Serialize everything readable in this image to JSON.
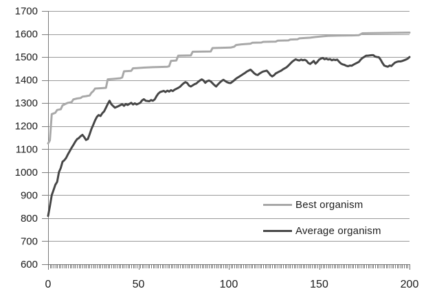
{
  "chart_data": {
    "type": "line",
    "title": "",
    "xlabel": "",
    "ylabel": "",
    "xlim": [
      0,
      200
    ],
    "ylim": [
      600,
      1700
    ],
    "yticks": [
      600,
      700,
      800,
      900,
      1000,
      1100,
      1200,
      1300,
      1400,
      1500,
      1600,
      1700
    ],
    "xticks": [
      0,
      50,
      100,
      150,
      200
    ],
    "x_minor_tick_interval": 1,
    "grid": "horizontal",
    "legend_position": "inside-right",
    "series": [
      {
        "name": "Best organism",
        "color": "#a8a8a8",
        "stroke_width": 3,
        "points": [
          [
            0,
            1125
          ],
          [
            1,
            1138
          ],
          [
            2,
            1252
          ],
          [
            4,
            1258
          ],
          [
            5,
            1270
          ],
          [
            7,
            1273
          ],
          [
            8,
            1290
          ],
          [
            10,
            1298
          ],
          [
            11,
            1301
          ],
          [
            13,
            1304
          ],
          [
            14,
            1316
          ],
          [
            16,
            1320
          ],
          [
            18,
            1322
          ],
          [
            19,
            1328
          ],
          [
            21,
            1330
          ],
          [
            23,
            1333
          ],
          [
            24,
            1345
          ],
          [
            25,
            1352
          ],
          [
            26,
            1363
          ],
          [
            30,
            1365
          ],
          [
            32,
            1366
          ],
          [
            33,
            1403
          ],
          [
            36,
            1405
          ],
          [
            40,
            1408
          ],
          [
            41,
            1411
          ],
          [
            42,
            1438
          ],
          [
            46,
            1440
          ],
          [
            47,
            1451
          ],
          [
            49,
            1452
          ],
          [
            53,
            1454
          ],
          [
            58,
            1456
          ],
          [
            63,
            1457
          ],
          [
            66,
            1458
          ],
          [
            67,
            1460
          ],
          [
            68,
            1483
          ],
          [
            71,
            1485
          ],
          [
            72,
            1506
          ],
          [
            79,
            1507
          ],
          [
            80,
            1523
          ],
          [
            90,
            1524
          ],
          [
            91,
            1539
          ],
          [
            101,
            1541
          ],
          [
            103,
            1545
          ],
          [
            104,
            1552
          ],
          [
            107,
            1555
          ],
          [
            112,
            1558
          ],
          [
            113,
            1562
          ],
          [
            118,
            1563
          ],
          [
            119,
            1566
          ],
          [
            126,
            1567
          ],
          [
            127,
            1571
          ],
          [
            133,
            1572
          ],
          [
            134,
            1576
          ],
          [
            138,
            1577
          ],
          [
            139,
            1581
          ],
          [
            145,
            1584
          ],
          [
            148,
            1587
          ],
          [
            152,
            1590
          ],
          [
            155,
            1592
          ],
          [
            160,
            1593
          ],
          [
            168,
            1594
          ],
          [
            172,
            1595
          ],
          [
            174,
            1603
          ],
          [
            180,
            1604
          ],
          [
            190,
            1605
          ],
          [
            200,
            1606
          ]
        ]
      },
      {
        "name": "Average organism",
        "color": "#464646",
        "stroke_width": 3,
        "points": [
          [
            0,
            810
          ],
          [
            1,
            852
          ],
          [
            2,
            900
          ],
          [
            3,
            922
          ],
          [
            4,
            945
          ],
          [
            5,
            958
          ],
          [
            6,
            1000
          ],
          [
            7,
            1018
          ],
          [
            8,
            1045
          ],
          [
            9,
            1052
          ],
          [
            10,
            1062
          ],
          [
            11,
            1078
          ],
          [
            12,
            1092
          ],
          [
            13,
            1106
          ],
          [
            14,
            1118
          ],
          [
            15,
            1132
          ],
          [
            16,
            1143
          ],
          [
            17,
            1148
          ],
          [
            18,
            1156
          ],
          [
            19,
            1162
          ],
          [
            20,
            1152
          ],
          [
            21,
            1140
          ],
          [
            22,
            1144
          ],
          [
            23,
            1165
          ],
          [
            24,
            1188
          ],
          [
            25,
            1206
          ],
          [
            26,
            1225
          ],
          [
            27,
            1240
          ],
          [
            28,
            1248
          ],
          [
            29,
            1244
          ],
          [
            30,
            1256
          ],
          [
            31,
            1264
          ],
          [
            32,
            1280
          ],
          [
            33,
            1296
          ],
          [
            34,
            1310
          ],
          [
            35,
            1295
          ],
          [
            36,
            1287
          ],
          [
            37,
            1280
          ],
          [
            39,
            1287
          ],
          [
            41,
            1295
          ],
          [
            42,
            1288
          ],
          [
            43,
            1296
          ],
          [
            44,
            1292
          ],
          [
            46,
            1301
          ],
          [
            47,
            1294
          ],
          [
            48,
            1299
          ],
          [
            49,
            1294
          ],
          [
            51,
            1301
          ],
          [
            52,
            1312
          ],
          [
            53,
            1317
          ],
          [
            54,
            1310
          ],
          [
            56,
            1308
          ],
          [
            57,
            1313
          ],
          [
            58,
            1310
          ],
          [
            59,
            1316
          ],
          [
            60,
            1330
          ],
          [
            61,
            1341
          ],
          [
            62,
            1348
          ],
          [
            64,
            1353
          ],
          [
            65,
            1348
          ],
          [
            66,
            1354
          ],
          [
            67,
            1350
          ],
          [
            68,
            1356
          ],
          [
            69,
            1352
          ],
          [
            70,
            1358
          ],
          [
            72,
            1366
          ],
          [
            73,
            1371
          ],
          [
            74,
            1379
          ],
          [
            75,
            1386
          ],
          [
            76,
            1391
          ],
          [
            77,
            1387
          ],
          [
            78,
            1376
          ],
          [
            79,
            1372
          ],
          [
            80,
            1377
          ],
          [
            81,
            1382
          ],
          [
            82,
            1385
          ],
          [
            83,
            1392
          ],
          [
            84,
            1398
          ],
          [
            85,
            1403
          ],
          [
            86,
            1398
          ],
          [
            87,
            1388
          ],
          [
            88,
            1395
          ],
          [
            89,
            1398
          ],
          [
            90,
            1394
          ],
          [
            91,
            1386
          ],
          [
            92,
            1378
          ],
          [
            93,
            1372
          ],
          [
            94,
            1381
          ],
          [
            95,
            1389
          ],
          [
            96,
            1396
          ],
          [
            97,
            1401
          ],
          [
            98,
            1396
          ],
          [
            99,
            1391
          ],
          [
            100,
            1388
          ],
          [
            101,
            1387
          ],
          [
            102,
            1393
          ],
          [
            103,
            1399
          ],
          [
            104,
            1406
          ],
          [
            105,
            1411
          ],
          [
            106,
            1416
          ],
          [
            107,
            1421
          ],
          [
            108,
            1426
          ],
          [
            109,
            1431
          ],
          [
            110,
            1437
          ],
          [
            111,
            1441
          ],
          [
            112,
            1445
          ],
          [
            113,
            1438
          ],
          [
            114,
            1430
          ],
          [
            115,
            1424
          ],
          [
            116,
            1422
          ],
          [
            117,
            1428
          ],
          [
            118,
            1433
          ],
          [
            119,
            1437
          ],
          [
            120,
            1439
          ],
          [
            121,
            1441
          ],
          [
            122,
            1432
          ],
          [
            123,
            1422
          ],
          [
            124,
            1416
          ],
          [
            125,
            1421
          ],
          [
            126,
            1429
          ],
          [
            127,
            1433
          ],
          [
            128,
            1437
          ],
          [
            129,
            1441
          ],
          [
            130,
            1447
          ],
          [
            131,
            1451
          ],
          [
            132,
            1456
          ],
          [
            133,
            1463
          ],
          [
            134,
            1471
          ],
          [
            135,
            1479
          ],
          [
            136,
            1485
          ],
          [
            137,
            1490
          ],
          [
            138,
            1487
          ],
          [
            139,
            1485
          ],
          [
            140,
            1489
          ],
          [
            141,
            1486
          ],
          [
            142,
            1488
          ],
          [
            143,
            1484
          ],
          [
            144,
            1474
          ],
          [
            145,
            1470
          ],
          [
            146,
            1476
          ],
          [
            147,
            1483
          ],
          [
            148,
            1471
          ],
          [
            149,
            1479
          ],
          [
            150,
            1489
          ],
          [
            151,
            1493
          ],
          [
            152,
            1496
          ],
          [
            153,
            1490
          ],
          [
            154,
            1493
          ],
          [
            155,
            1489
          ],
          [
            156,
            1491
          ],
          [
            157,
            1486
          ],
          [
            158,
            1489
          ],
          [
            159,
            1487
          ],
          [
            160,
            1489
          ],
          [
            161,
            1480
          ],
          [
            162,
            1472
          ],
          [
            163,
            1468
          ],
          [
            164,
            1466
          ],
          [
            165,
            1462
          ],
          [
            166,
            1460
          ],
          [
            167,
            1463
          ],
          [
            168,
            1462
          ],
          [
            169,
            1467
          ],
          [
            170,
            1471
          ],
          [
            171,
            1475
          ],
          [
            172,
            1479
          ],
          [
            173,
            1489
          ],
          [
            174,
            1496
          ],
          [
            175,
            1501
          ],
          [
            176,
            1506
          ],
          [
            177,
            1506
          ],
          [
            178,
            1507
          ],
          [
            179,
            1508
          ],
          [
            180,
            1508
          ],
          [
            181,
            1502
          ],
          [
            182,
            1500
          ],
          [
            183,
            1499
          ],
          [
            184,
            1489
          ],
          [
            185,
            1475
          ],
          [
            186,
            1463
          ],
          [
            187,
            1460
          ],
          [
            188,
            1458
          ],
          [
            189,
            1463
          ],
          [
            190,
            1461
          ],
          [
            191,
            1469
          ],
          [
            192,
            1476
          ],
          [
            193,
            1479
          ],
          [
            194,
            1481
          ],
          [
            195,
            1481
          ],
          [
            196,
            1483
          ],
          [
            197,
            1486
          ],
          [
            198,
            1489
          ],
          [
            199,
            1493
          ],
          [
            200,
            1500
          ]
        ]
      }
    ]
  },
  "style": {
    "background": "#ffffff",
    "gridline_color": "#999999",
    "axis_color": "#7a7a7a",
    "minor_tick_color": "#6e6e6e",
    "label_color": "#1a1a1a"
  }
}
